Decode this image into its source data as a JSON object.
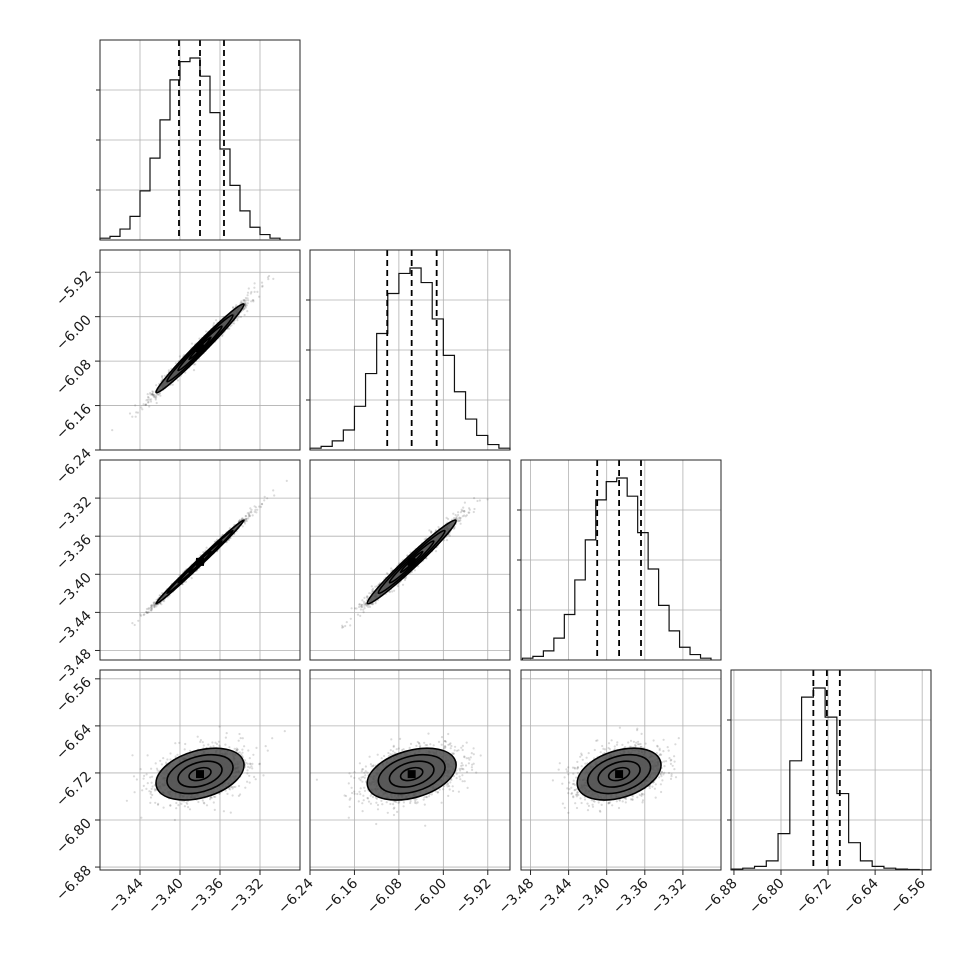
{
  "chart_data": {
    "type": "corner",
    "grid": true,
    "parameters": [
      {
        "ticks": [
          -3.44,
          -3.4,
          -3.36,
          -3.32
        ],
        "tick_labels": [
          "−3.44",
          "−3.40",
          "−3.36",
          "−3.32"
        ],
        "row_ticks": [
          -3.48,
          -3.44,
          -3.4,
          -3.36,
          -3.32
        ],
        "row_tick_labels": [
          "−3.48",
          "−3.44",
          "−3.40",
          "−3.36",
          "−3.32"
        ],
        "range": [
          -3.48,
          -3.28
        ],
        "quantiles": [
          -3.401,
          -3.38,
          -3.356
        ],
        "hist_x": [
          -3.475,
          -3.465,
          -3.455,
          -3.445,
          -3.435,
          -3.425,
          -3.415,
          -3.405,
          -3.395,
          -3.385,
          -3.375,
          -3.365,
          -3.355,
          -3.345,
          -3.335,
          -3.325,
          -3.315,
          -3.305
        ],
        "hist_counts": [
          1,
          2,
          6,
          13,
          27,
          45,
          66,
          88,
          98,
          100,
          90,
          70,
          50,
          30,
          16,
          7,
          3,
          1
        ],
        "mean": -3.38,
        "sd": 0.022
      },
      {
        "ticks": [
          -6.24,
          -6.16,
          -6.08,
          -6.0,
          -5.92
        ],
        "tick_labels": [
          "−6.24",
          "−6.16",
          "−6.08",
          "−6.00",
          "−5.92"
        ],
        "row_ticks": [
          -6.24,
          -6.16,
          -6.08,
          -6.0,
          -5.92
        ],
        "row_tick_labels": [
          "−6.24",
          "−6.16",
          "−6.08",
          "−6.00",
          "−5.92"
        ],
        "range": [
          -6.24,
          -5.88
        ],
        "quantiles": [
          -6.101,
          -6.057,
          -6.012
        ],
        "hist_x": [
          -6.23,
          -6.21,
          -6.19,
          -6.17,
          -6.15,
          -6.13,
          -6.11,
          -6.09,
          -6.07,
          -6.05,
          -6.03,
          -6.01,
          -5.99,
          -5.97,
          -5.95,
          -5.93,
          -5.91,
          -5.89
        ],
        "hist_counts": [
          1,
          2,
          5,
          11,
          24,
          42,
          64,
          86,
          97,
          100,
          92,
          72,
          52,
          32,
          17,
          8,
          3,
          1
        ],
        "mean": -6.057,
        "sd": 0.04
      },
      {
        "ticks": [
          -3.48,
          -3.44,
          -3.4,
          -3.36,
          -3.32
        ],
        "tick_labels": [
          "−3.48",
          "−3.44",
          "−3.40",
          "−3.36",
          "−3.32"
        ],
        "row_ticks": [
          -3.48,
          -3.44,
          -3.4,
          -3.36,
          -3.32
        ],
        "row_tick_labels": [
          "−3.48",
          "−3.44",
          "−3.40",
          "−3.36",
          "−3.32"
        ],
        "range": [
          -3.49,
          -3.28
        ],
        "quantiles": [
          -3.41,
          -3.387,
          -3.364
        ],
        "hist_x": [
          -3.483,
          -3.472,
          -3.461,
          -3.45,
          -3.439,
          -3.428,
          -3.417,
          -3.406,
          -3.395,
          -3.384,
          -3.373,
          -3.362,
          -3.351,
          -3.34,
          -3.329,
          -3.318,
          -3.307,
          -3.296
        ],
        "hist_counts": [
          1,
          2,
          5,
          12,
          25,
          44,
          66,
          88,
          98,
          100,
          90,
          70,
          50,
          30,
          16,
          7,
          3,
          1
        ],
        "mean": -3.387,
        "sd": 0.022
      },
      {
        "ticks": [
          -6.88,
          -6.8,
          -6.72,
          -6.64,
          -6.56
        ],
        "tick_labels": [
          "−6.88",
          "−6.80",
          "−6.72",
          "−6.64",
          "−6.56"
        ],
        "row_ticks": [
          -6.88,
          -6.8,
          -6.72,
          -6.64,
          -6.56
        ],
        "row_tick_labels": [
          "−6.88",
          "−6.80",
          "−6.72",
          "−6.64",
          "−6.56"
        ],
        "range": [
          -6.885,
          -6.545
        ],
        "quantiles": [
          -6.745,
          -6.722,
          -6.7
        ],
        "hist_x": [
          -6.875,
          -6.855,
          -6.835,
          -6.815,
          -6.795,
          -6.775,
          -6.755,
          -6.735,
          -6.715,
          -6.695,
          -6.675,
          -6.655,
          -6.635,
          -6.615,
          -6.595,
          -6.575,
          -6.555
        ],
        "hist_counts": [
          0.5,
          1,
          2,
          5,
          20,
          60,
          95,
          100,
          84,
          42,
          15,
          5,
          2,
          1,
          0.5,
          0.3,
          0.1
        ],
        "mean": -6.722,
        "sd": 0.022
      }
    ],
    "correlations": {
      "1-0": 0.985,
      "2-0": 0.995,
      "2-1": 0.98,
      "3-0": 0.35,
      "3-1": 0.35,
      "3-2": 0.35
    },
    "contour_levels": [
      0.5,
      1.0,
      1.5,
      2.0
    ]
  }
}
